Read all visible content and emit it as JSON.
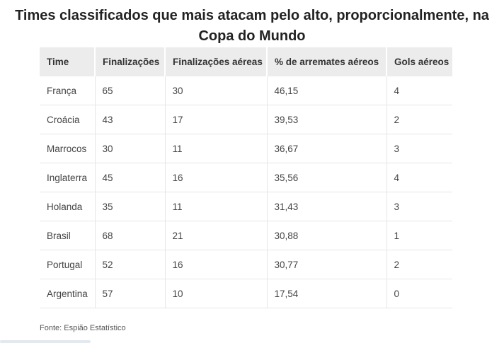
{
  "title": {
    "line1": "Times classificados que mais atacam pelo alto, proporcionalmente, na",
    "line2": "Copa do Mundo"
  },
  "table": {
    "headers": [
      "Time",
      "Finalizações",
      "Finalizações aéreas",
      "% de arremates aéreos",
      "Gols aéreos"
    ],
    "rows": [
      [
        "França",
        "65",
        "30",
        "46,15",
        "4"
      ],
      [
        "Croácia",
        "43",
        "17",
        "39,53",
        "2"
      ],
      [
        "Marrocos",
        "30",
        "11",
        "36,67",
        "3"
      ],
      [
        "Inglaterra",
        "45",
        "16",
        "35,56",
        "4"
      ],
      [
        "Holanda",
        "35",
        "11",
        "31,43",
        "3"
      ],
      [
        "Brasil",
        "68",
        "21",
        "30,88",
        "1"
      ],
      [
        "Portugal",
        "52",
        "16",
        "30,77",
        "2"
      ],
      [
        "Argentina",
        "57",
        "10",
        "17,54",
        "0"
      ]
    ]
  },
  "source": "Fonte: Espião Estatístico",
  "colors": {
    "header_bg": "#ececec",
    "row_border": "#e6e6e6",
    "text": "#333333"
  }
}
